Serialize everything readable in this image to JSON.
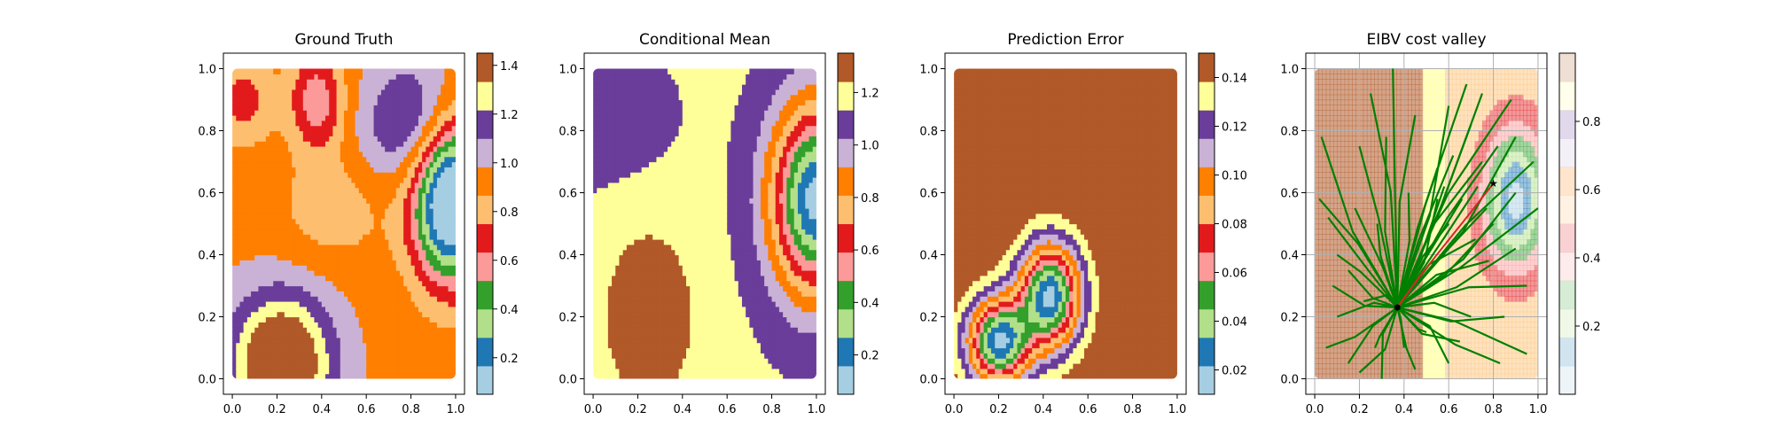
{
  "chart_data": [
    {
      "type": "heatmap",
      "title": "Ground Truth",
      "xlim": [
        0,
        1
      ],
      "ylim": [
        0,
        1
      ],
      "xticks": [
        "0.0",
        "0.2",
        "0.4",
        "0.6",
        "0.8",
        "1.0"
      ],
      "yticks": [
        "0.0",
        "0.2",
        "0.4",
        "0.6",
        "0.8",
        "1.0"
      ],
      "colorbar": {
        "min": 0.05,
        "max": 1.45,
        "ticks": [
          "0.2",
          "0.4",
          "0.6",
          "0.8",
          "1.0",
          "1.2",
          "1.4"
        ],
        "tick_values": [
          0.2,
          0.4,
          0.6,
          0.8,
          1.0,
          1.2,
          1.4
        ]
      },
      "colormap": "Paired",
      "field": {
        "base": 0.95,
        "bumps": [
          {
            "x": 0.98,
            "y": 0.58,
            "amp": -1.1,
            "sx": 0.17,
            "sy": 0.26
          },
          {
            "x": 0.22,
            "y": 0.05,
            "amp": 0.65,
            "sx": 0.22,
            "sy": 0.22
          },
          {
            "x": 0.82,
            "y": 0.82,
            "amp": 0.35,
            "sx": 0.22,
            "sy": 0.2
          },
          {
            "x": 0.38,
            "y": 0.9,
            "amp": -0.4,
            "sx": 0.12,
            "sy": 0.16
          },
          {
            "x": 0.05,
            "y": 0.9,
            "amp": -0.25,
            "sx": 0.14,
            "sy": 0.14
          },
          {
            "x": 0.45,
            "y": 0.55,
            "amp": -0.15,
            "sx": 0.25,
            "sy": 0.18
          }
        ]
      }
    },
    {
      "type": "heatmap",
      "title": "Conditional Mean",
      "xlim": [
        0,
        1
      ],
      "ylim": [
        0,
        1
      ],
      "xticks": [
        "0.0",
        "0.2",
        "0.4",
        "0.6",
        "0.8",
        "1.0"
      ],
      "yticks": [
        "0.0",
        "0.2",
        "0.4",
        "0.6",
        "0.8",
        "1.0"
      ],
      "colorbar": {
        "min": 0.05,
        "max": 1.35,
        "ticks": [
          "0.2",
          "0.4",
          "0.6",
          "0.8",
          "1.0",
          "1.2"
        ],
        "tick_values": [
          0.2,
          0.4,
          0.6,
          0.8,
          1.0,
          1.2
        ]
      },
      "colormap": "Paired",
      "field": {
        "base": 1.15,
        "bumps": [
          {
            "x": 1.0,
            "y": 0.58,
            "amp": -1.05,
            "sx": 0.2,
            "sy": 0.3
          },
          {
            "x": 0.25,
            "y": 0.2,
            "amp": 0.22,
            "sx": 0.2,
            "sy": 0.28
          },
          {
            "x": 0.0,
            "y": 0.85,
            "amp": -0.1,
            "sx": 0.3,
            "sy": 0.2
          }
        ]
      }
    },
    {
      "type": "heatmap",
      "title": "Prediction Error",
      "xlim": [
        0,
        1
      ],
      "ylim": [
        0,
        1
      ],
      "xticks": [
        "0.0",
        "0.2",
        "0.4",
        "0.6",
        "0.8",
        "1.0"
      ],
      "yticks": [
        "0.0",
        "0.2",
        "0.4",
        "0.6",
        "0.8",
        "1.0"
      ],
      "colorbar": {
        "min": 0.01,
        "max": 0.15,
        "ticks": [
          "0.02",
          "0.04",
          "0.06",
          "0.08",
          "0.10",
          "0.12",
          "0.14"
        ],
        "tick_values": [
          0.02,
          0.04,
          0.06,
          0.08,
          0.1,
          0.12,
          0.14
        ]
      },
      "colormap": "Paired",
      "field": {
        "base": 0.15,
        "bumps": [
          {
            "x": 0.2,
            "y": 0.12,
            "amp": -0.13,
            "sx": 0.14,
            "sy": 0.14
          },
          {
            "x": 0.43,
            "y": 0.27,
            "amp": -0.13,
            "sx": 0.14,
            "sy": 0.17
          }
        ]
      }
    },
    {
      "type": "heatmap",
      "title": "EIBV cost valley",
      "xlim": [
        0,
        1
      ],
      "ylim": [
        0,
        1
      ],
      "xticks": [
        "0.0",
        "0.2",
        "0.4",
        "0.6",
        "0.8",
        "1.0"
      ],
      "yticks": [
        "0.0",
        "0.2",
        "0.4",
        "0.6",
        "0.8",
        "1.0"
      ],
      "colorbar": {
        "min": 0.0,
        "max": 1.0,
        "ticks": [
          "0.2",
          "0.4",
          "0.6",
          "0.8"
        ],
        "tick_values": [
          0.2,
          0.4,
          0.6,
          0.8
        ]
      },
      "colormap": "Paired (translucent)",
      "grid": true,
      "start_point": [
        0.37,
        0.23
      ],
      "target_point": [
        0.8,
        0.63
      ],
      "chosen_path": [
        [
          0.37,
          0.23
        ],
        [
          0.47,
          0.33
        ],
        [
          0.58,
          0.43
        ],
        [
          0.68,
          0.52
        ],
        [
          0.8,
          0.63
        ]
      ],
      "candidate_endpoints": [
        [
          0.03,
          0.78
        ],
        [
          0.02,
          0.58
        ],
        [
          0.06,
          0.52
        ],
        [
          0.1,
          0.4
        ],
        [
          0.08,
          0.3
        ],
        [
          0.1,
          0.2
        ],
        [
          0.05,
          0.1
        ],
        [
          0.15,
          0.05
        ],
        [
          0.2,
          0.02
        ],
        [
          0.3,
          0.0
        ],
        [
          0.45,
          0.03
        ],
        [
          0.6,
          0.05
        ],
        [
          0.65,
          0.12
        ],
        [
          0.7,
          0.2
        ],
        [
          0.83,
          0.05
        ],
        [
          0.95,
          0.08
        ],
        [
          0.85,
          0.2
        ],
        [
          0.95,
          0.3
        ],
        [
          1.0,
          0.55
        ],
        [
          0.98,
          0.7
        ],
        [
          0.9,
          0.78
        ],
        [
          0.88,
          0.9
        ],
        [
          0.75,
          0.92
        ],
        [
          0.7,
          0.82
        ],
        [
          0.62,
          0.72
        ],
        [
          0.55,
          0.68
        ],
        [
          0.6,
          0.88
        ],
        [
          0.45,
          0.85
        ],
        [
          0.35,
          1.0
        ],
        [
          0.25,
          0.92
        ],
        [
          0.32,
          0.78
        ],
        [
          0.2,
          0.75
        ],
        [
          0.18,
          0.55
        ],
        [
          0.28,
          0.5
        ],
        [
          0.15,
          0.35
        ],
        [
          0.22,
          0.25
        ],
        [
          0.27,
          0.1
        ],
        [
          0.4,
          0.1
        ],
        [
          0.5,
          0.15
        ],
        [
          0.78,
          0.38
        ],
        [
          0.8,
          0.5
        ],
        [
          0.73,
          0.62
        ],
        [
          0.66,
          0.58
        ],
        [
          0.6,
          0.5
        ],
        [
          0.55,
          0.58
        ],
        [
          0.72,
          0.45
        ],
        [
          0.9,
          0.42
        ],
        [
          0.42,
          0.6
        ],
        [
          0.68,
          0.95
        ],
        [
          0.82,
          0.75
        ],
        [
          0.9,
          0.6
        ],
        [
          0.75,
          0.7
        ],
        [
          0.58,
          0.62
        ],
        [
          0.77,
          0.55
        ]
      ],
      "field": {
        "base": 0.55,
        "bumps": [
          {
            "x": 0.9,
            "y": 0.58,
            "amp": -0.5,
            "sx": 0.14,
            "sy": 0.22
          }
        ],
        "brown_region_xmax": 0.58
      }
    }
  ]
}
